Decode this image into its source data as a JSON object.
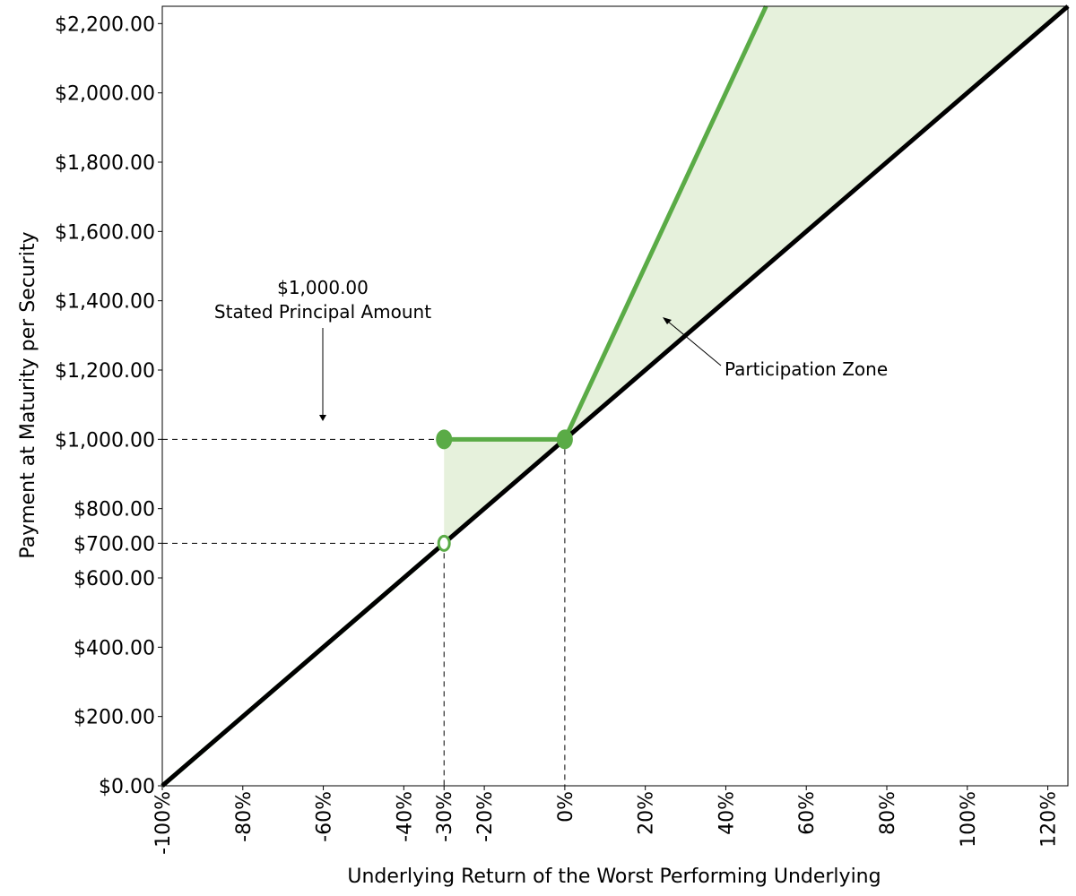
{
  "chart_data": {
    "type": "line",
    "xlabel": "Underlying Return of the Worst Performing Underlying",
    "ylabel": "Payment at Maturity per Security",
    "xlim": [
      -100,
      125
    ],
    "ylim": [
      0,
      2250
    ],
    "x_ticks": [
      -100,
      -80,
      -60,
      -40,
      -30,
      -20,
      0,
      20,
      40,
      60,
      80,
      100,
      120
    ],
    "x_tick_labels": [
      "-100%",
      "-80%",
      "-60%",
      "-40%",
      "-30%",
      "-20%",
      "0%",
      "20%",
      "40%",
      "60%",
      "80%",
      "100%",
      "120%"
    ],
    "y_ticks": [
      0,
      200,
      400,
      600,
      700,
      800,
      1000,
      1200,
      1400,
      1600,
      1800,
      2000,
      2200
    ],
    "y_tick_labels": [
      "$0.00",
      "$200.00",
      "$400.00",
      "$600.00",
      "$700.00",
      "$800.00",
      "$1,000.00",
      "$1,200.00",
      "$1,400.00",
      "$1,600.00",
      "$1,800.00",
      "$2,000.00",
      "$2,200.00"
    ],
    "grid": false,
    "series": [
      {
        "color": "#000000",
        "x": [
          -100,
          125
        ],
        "y": [
          0,
          2250
        ]
      },
      {
        "color": "#5aab46",
        "segments": [
          {
            "x": [
              -100,
              -30
            ],
            "y": [
              0,
              700
            ]
          },
          {
            "x": [
              -30,
              0
            ],
            "y": [
              1000,
              1000
            ]
          },
          {
            "x": [
              0,
              50
            ],
            "y": [
              1000,
              2250
            ]
          }
        ]
      }
    ],
    "points": [
      {
        "x": -30,
        "y": 1000,
        "filled": true
      },
      {
        "x": -30,
        "y": 700,
        "filled": false
      },
      {
        "x": 0,
        "y": 1000,
        "filled": true
      }
    ],
    "shaded_regions": [
      {
        "color": "#e6f1dc",
        "x": [
          -30,
          -30,
          0
        ],
        "y": [
          700,
          1000,
          1000
        ]
      },
      {
        "color": "#e6f1dc",
        "x": [
          0,
          50,
          125
        ],
        "y": [
          1000,
          2250,
          2250
        ]
      }
    ],
    "reference_lines": [
      {
        "from": [
          -100,
          1000
        ],
        "to": [
          -30,
          1000
        ]
      },
      {
        "from": [
          -100,
          700
        ],
        "to": [
          -30,
          700
        ]
      },
      {
        "from": [
          -30,
          700
        ],
        "to": [
          -30,
          0
        ]
      },
      {
        "from": [
          0,
          1000
        ],
        "to": [
          0,
          0
        ]
      }
    ],
    "annotations": {
      "principal_value": "$1,000.00",
      "principal_label": "Stated Principal Amount",
      "participation_zone": "Participation Zone"
    }
  }
}
